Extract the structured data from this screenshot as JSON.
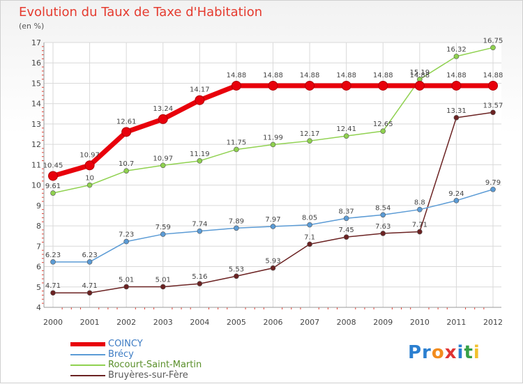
{
  "chart_data": {
    "type": "line",
    "title": "Evolution du Taux de Taxe d'Habitation",
    "ylabel": "(en %)",
    "xlabel": "",
    "ylim": [
      4,
      17
    ],
    "yticks": [
      "4",
      "5",
      "6",
      "7",
      "8",
      "9",
      "10",
      "11",
      "12",
      "13",
      "14",
      "15",
      "16",
      "17"
    ],
    "categories": [
      "2000",
      "2001",
      "2002",
      "2003",
      "2004",
      "2005",
      "2006",
      "2007",
      "2008",
      "2009",
      "2010",
      "2011",
      "2012"
    ],
    "grid": true,
    "legend_position": "bottom-left",
    "series": [
      {
        "name": "COINCY",
        "color": "#e8000b",
        "values": [
          10.45,
          10.97,
          12.61,
          13.24,
          14.17,
          14.88,
          14.88,
          14.88,
          14.88,
          14.88,
          14.88,
          14.88,
          14.88
        ],
        "labels": [
          "10.45",
          "10.97",
          "12.61",
          "13.24",
          "14.17",
          "14.88",
          "14.88",
          "14.88",
          "14.88",
          "14.88",
          "14.88",
          "14.88",
          "14.88"
        ]
      },
      {
        "name": "Brécy",
        "color": "#5b9bd5",
        "values": [
          6.23,
          6.23,
          7.23,
          7.59,
          7.74,
          7.89,
          7.97,
          8.05,
          8.37,
          8.54,
          8.8,
          9.24,
          9.79
        ],
        "labels": [
          "6.23",
          "6.23",
          "7.23",
          "7.59",
          "7.74",
          "7.89",
          "7.97",
          "8.05",
          "8.37",
          "8.54",
          "8.8",
          "9.24",
          "9.79"
        ]
      },
      {
        "name": "Rocourt-Saint-Martin",
        "color": "#8fd14f",
        "values": [
          9.61,
          10,
          10.7,
          10.97,
          11.19,
          11.75,
          11.99,
          12.17,
          12.41,
          12.65,
          15.19,
          16.32,
          16.75
        ],
        "labels": [
          "9.61",
          "10",
          "10.7",
          "10.97",
          "11.19",
          "11.75",
          "11.99",
          "12.17",
          "12.41",
          "12.65",
          "15.19",
          "16.32",
          "16.75"
        ]
      },
      {
        "name": "Bruyères-sur-Fère",
        "color": "#6b2222",
        "values": [
          4.71,
          4.71,
          5.01,
          5.01,
          5.16,
          5.53,
          5.93,
          7.1,
          7.45,
          7.63,
          7.71,
          13.31,
          13.57
        ],
        "labels": [
          "4.71",
          "4.71",
          "5.01",
          "5.01",
          "5.16",
          "5.53",
          "5.93",
          "7.1",
          "7.45",
          "7.63",
          "7.71",
          "13.31",
          "13.57"
        ]
      }
    ]
  },
  "brand": {
    "p1": "Pr",
    "o": "o",
    "x": "x",
    "i1": "i",
    "t": "t",
    "i2": "i"
  }
}
